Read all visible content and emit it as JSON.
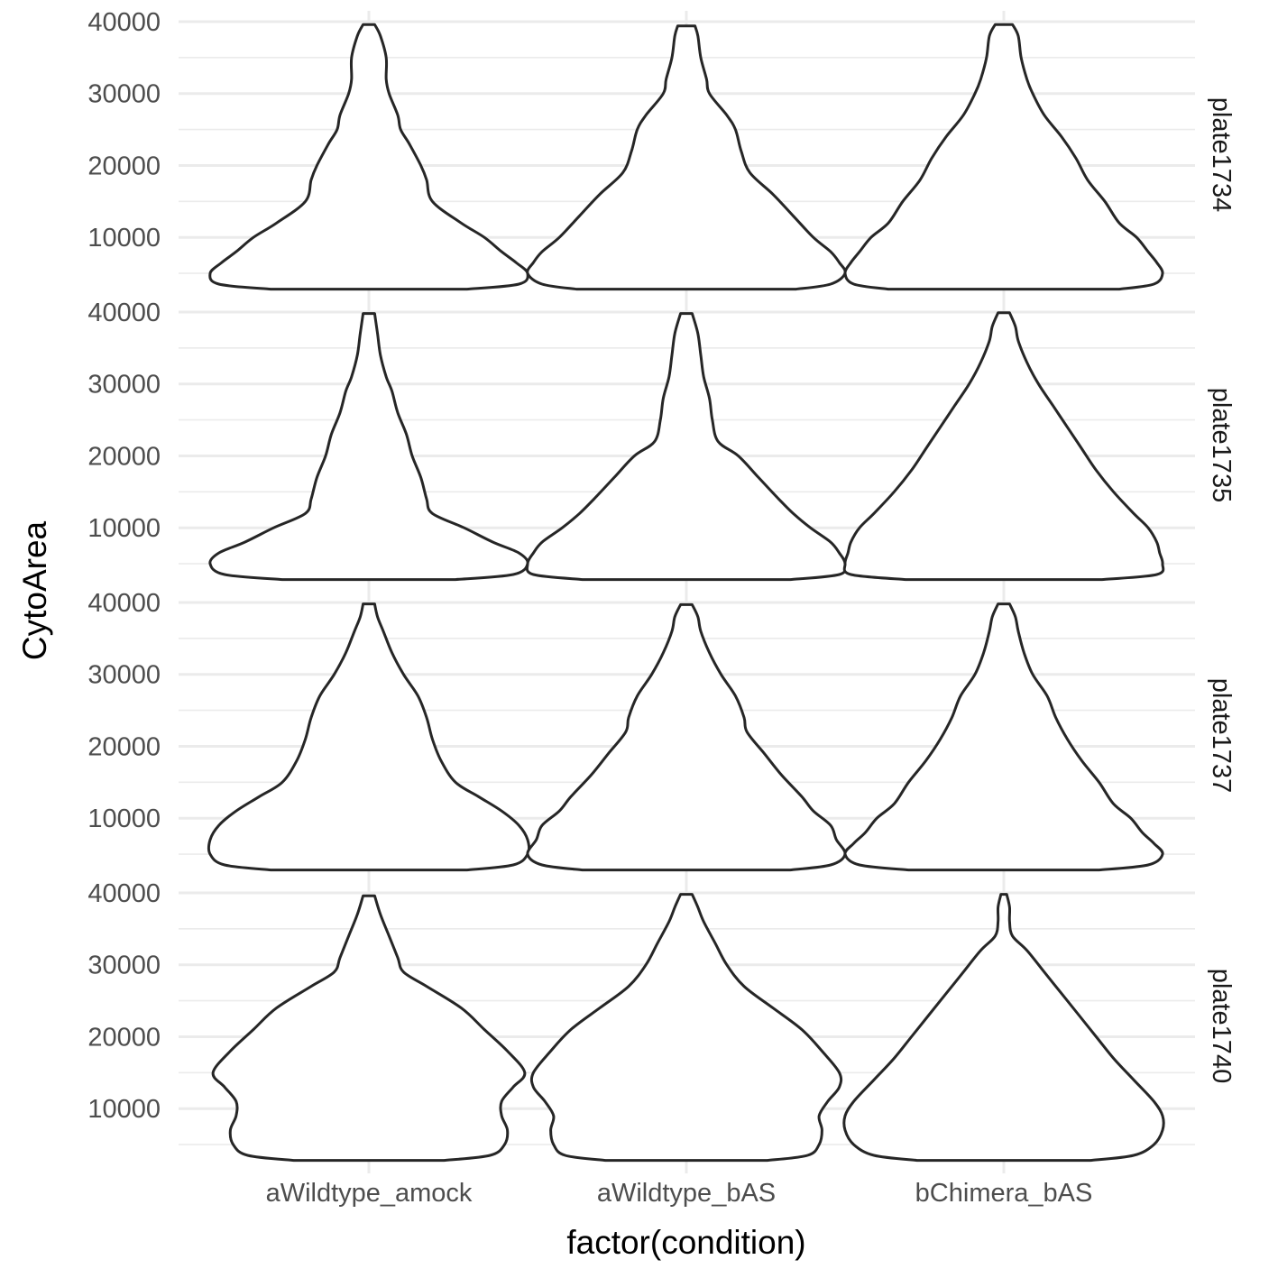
{
  "chart_data": {
    "type": "violin",
    "xlabel": "factor(condition)",
    "ylabel": "CytoArea",
    "categories": [
      "aWildtype_amock",
      "aWildtype_bAS",
      "bChimera_bAS"
    ],
    "y_ticks": [
      10000,
      20000,
      30000,
      40000
    ],
    "ylim": [
      2500,
      40500
    ],
    "facet_strip_position": "right",
    "grid": true,
    "panels": [
      {
        "facet": "plate1734",
        "violins": [
          {
            "category": "aWildtype_amock",
            "profile_y": [
              2800,
              3500,
              5000,
              6500,
              8000,
              10000,
              12000,
              15000,
              18000,
              20000,
              23000,
              25000,
              27000,
              30000,
              32000,
              35000,
              38000,
              39600
            ],
            "profile_width": [
              0.34,
              0.52,
              0.55,
              0.51,
              0.46,
              0.4,
              0.32,
              0.22,
              0.2,
              0.18,
              0.14,
              0.11,
              0.1,
              0.07,
              0.06,
              0.06,
              0.04,
              0.02
            ]
          },
          {
            "category": "aWildtype_bAS",
            "profile_y": [
              2800,
              3500,
              5000,
              6500,
              8000,
              10000,
              13000,
              16000,
              19000,
              22000,
              25000,
              27000,
              30000,
              32000,
              35000,
              38000,
              39400
            ],
            "profile_width": [
              0.38,
              0.5,
              0.55,
              0.53,
              0.5,
              0.44,
              0.37,
              0.3,
              0.22,
              0.19,
              0.17,
              0.14,
              0.08,
              0.07,
              0.05,
              0.04,
              0.03
            ]
          },
          {
            "category": "bChimera_bAS",
            "profile_y": [
              2800,
              3500,
              5000,
              6500,
              8000,
              10000,
              12000,
              15000,
              18000,
              21000,
              24000,
              27000,
              30000,
              32000,
              35000,
              38000,
              39600
            ],
            "profile_width": [
              0.4,
              0.52,
              0.55,
              0.53,
              0.5,
              0.46,
              0.4,
              0.35,
              0.29,
              0.25,
              0.2,
              0.14,
              0.1,
              0.08,
              0.06,
              0.05,
              0.03
            ]
          }
        ]
      },
      {
        "facet": "plate1735",
        "violins": [
          {
            "category": "aWildtype_amock",
            "profile_y": [
              2800,
              3500,
              5000,
              6500,
              8000,
              10000,
              12000,
              14000,
              17000,
              20000,
              23000,
              26000,
              29000,
              31000,
              34000,
              37000,
              39800
            ],
            "profile_width": [
              0.3,
              0.5,
              0.55,
              0.52,
              0.43,
              0.33,
              0.22,
              0.2,
              0.18,
              0.15,
              0.13,
              0.1,
              0.08,
              0.06,
              0.04,
              0.03,
              0.02
            ]
          },
          {
            "category": "aWildtype_bAS",
            "profile_y": [
              2800,
              3500,
              5000,
              6500,
              8000,
              10000,
              12000,
              14000,
              17000,
              20000,
              22000,
              25000,
              28000,
              31000,
              34000,
              37000,
              39800
            ],
            "profile_width": [
              0.36,
              0.53,
              0.55,
              0.53,
              0.5,
              0.43,
              0.37,
              0.32,
              0.25,
              0.18,
              0.11,
              0.09,
              0.08,
              0.06,
              0.05,
              0.04,
              0.02
            ]
          },
          {
            "category": "bChimera_bAS",
            "profile_y": [
              2800,
              3500,
              5000,
              6500,
              8000,
              10000,
              12000,
              15000,
              18000,
              21000,
              24000,
              27000,
              30000,
              33000,
              36000,
              38000,
              39900
            ],
            "profile_width": [
              0.34,
              0.53,
              0.55,
              0.54,
              0.53,
              0.5,
              0.45,
              0.38,
              0.32,
              0.27,
              0.22,
              0.17,
              0.12,
              0.08,
              0.05,
              0.04,
              0.02
            ]
          }
        ]
      },
      {
        "facet": "plate1737",
        "violins": [
          {
            "category": "aWildtype_amock",
            "profile_y": [
              2800,
              3500,
              5000,
              7000,
              9000,
              11000,
              13000,
              15000,
              18000,
              21000,
              24000,
              27000,
              30000,
              33000,
              36000,
              38000,
              39800
            ],
            "profile_width": [
              0.34,
              0.5,
              0.55,
              0.55,
              0.52,
              0.46,
              0.38,
              0.3,
              0.25,
              0.22,
              0.2,
              0.17,
              0.12,
              0.08,
              0.05,
              0.03,
              0.02
            ]
          },
          {
            "category": "aWildtype_bAS",
            "profile_y": [
              2800,
              3500,
              5000,
              7000,
              9000,
              11000,
              13000,
              16000,
              19000,
              22000,
              24000,
              27000,
              30000,
              33000,
              36000,
              38000,
              39700
            ],
            "profile_width": [
              0.36,
              0.5,
              0.55,
              0.52,
              0.5,
              0.44,
              0.4,
              0.33,
              0.27,
              0.21,
              0.2,
              0.17,
              0.12,
              0.08,
              0.05,
              0.04,
              0.02
            ]
          },
          {
            "category": "bChimera_bAS",
            "profile_y": [
              2800,
              3500,
              5000,
              6500,
              8000,
              10000,
              12000,
              15000,
              18000,
              21000,
              24000,
              27000,
              30000,
              33000,
              36000,
              38000,
              39800
            ],
            "profile_width": [
              0.33,
              0.5,
              0.55,
              0.52,
              0.48,
              0.44,
              0.38,
              0.33,
              0.27,
              0.22,
              0.18,
              0.15,
              0.1,
              0.07,
              0.05,
              0.04,
              0.02
            ]
          }
        ]
      },
      {
        "facet": "plate1740",
        "violins": [
          {
            "category": "aWildtype_amock",
            "profile_y": [
              2800,
              3500,
              5000,
              7000,
              9000,
              11000,
              13000,
              15000,
              18000,
              21000,
              24000,
              27000,
              29000,
              31000,
              34000,
              37000,
              39600
            ],
            "profile_width": [
              0.26,
              0.42,
              0.47,
              0.48,
              0.46,
              0.46,
              0.5,
              0.54,
              0.48,
              0.4,
              0.32,
              0.2,
              0.12,
              0.1,
              0.07,
              0.04,
              0.02
            ]
          },
          {
            "category": "aWildtype_bAS",
            "profile_y": [
              2800,
              3500,
              5000,
              7000,
              9000,
              11000,
              13000,
              15000,
              18000,
              21000,
              24000,
              27000,
              30000,
              33000,
              36000,
              38000,
              39800
            ],
            "profile_width": [
              0.28,
              0.42,
              0.46,
              0.47,
              0.46,
              0.49,
              0.53,
              0.53,
              0.47,
              0.4,
              0.3,
              0.2,
              0.14,
              0.1,
              0.06,
              0.04,
              0.02
            ]
          },
          {
            "category": "bChimera_bAS",
            "profile_y": [
              2800,
              3500,
              5000,
              7000,
              9000,
              11000,
              14000,
              17000,
              20000,
              23000,
              26000,
              29000,
              32000,
              34000,
              36000,
              38000,
              39800
            ],
            "profile_width": [
              0.3,
              0.45,
              0.52,
              0.55,
              0.55,
              0.52,
              0.45,
              0.38,
              0.32,
              0.26,
              0.2,
              0.14,
              0.08,
              0.03,
              0.02,
              0.02,
              0.01
            ]
          }
        ]
      }
    ]
  }
}
